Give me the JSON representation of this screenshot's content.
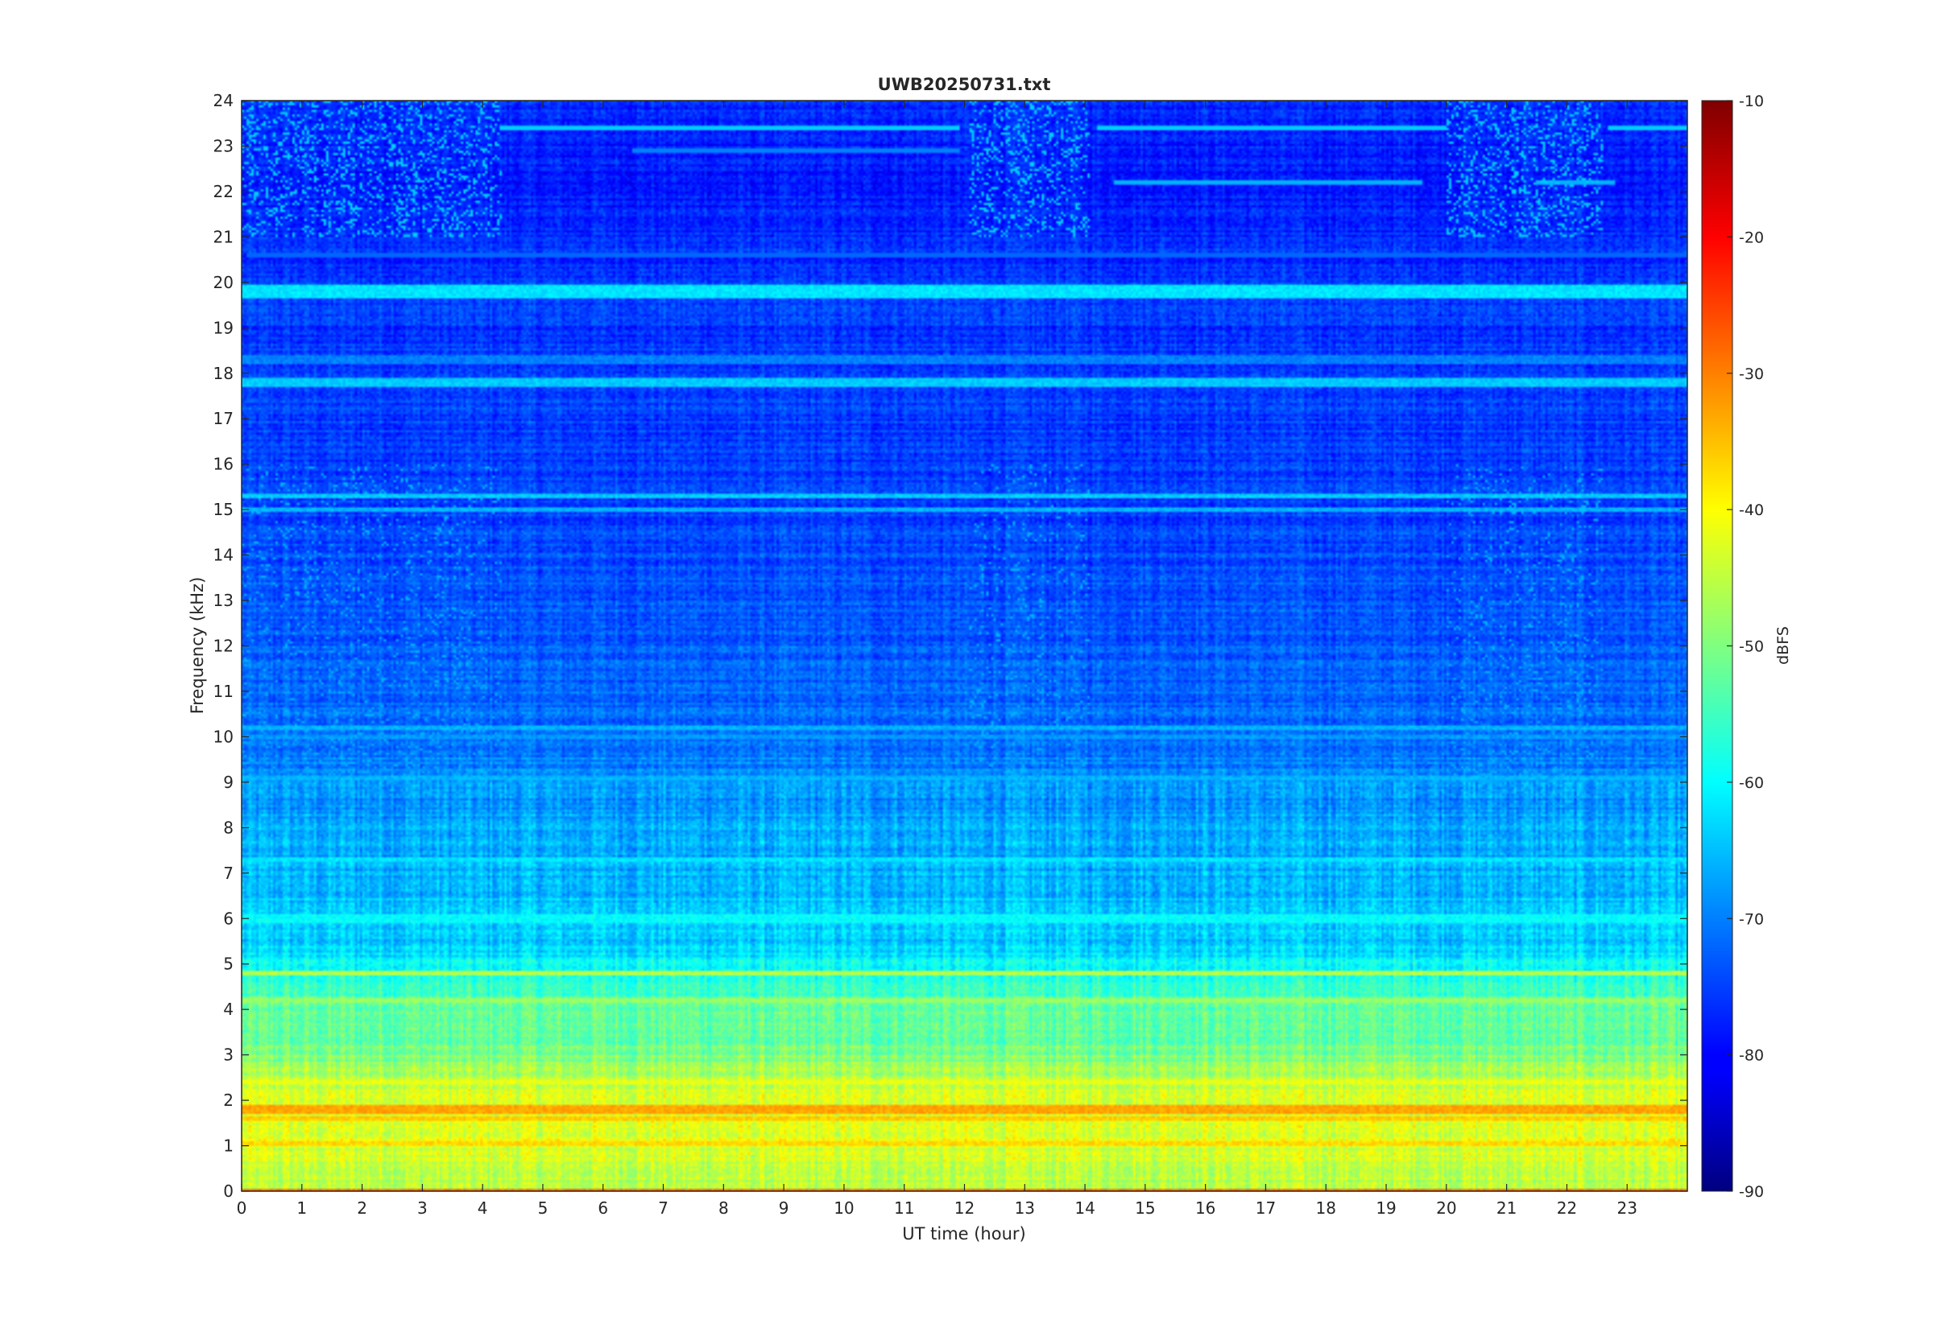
{
  "chart_data": {
    "type": "heatmap",
    "title": "UWB20250731.txt",
    "xlabel": "UT time (hour)",
    "ylabel": "Frequency (kHz)",
    "xlim": [
      0,
      24
    ],
    "ylim": [
      0,
      24
    ],
    "x_ticks": [
      0,
      1,
      2,
      3,
      4,
      5,
      6,
      7,
      8,
      9,
      10,
      11,
      12,
      13,
      14,
      15,
      16,
      17,
      18,
      19,
      20,
      21,
      22,
      23
    ],
    "y_ticks": [
      0,
      1,
      2,
      3,
      4,
      5,
      6,
      7,
      8,
      9,
      10,
      11,
      12,
      13,
      14,
      15,
      16,
      17,
      18,
      19,
      20,
      21,
      22,
      23,
      24
    ],
    "colorbar": {
      "label": "dBFS",
      "colormap": "jet",
      "range": [
        -90,
        -10
      ],
      "ticks": [
        -10,
        -20,
        -30,
        -40,
        -50,
        -60,
        -70,
        -80,
        -90
      ]
    },
    "frequency_profile_dbfs": [
      {
        "f": 0,
        "v": -48
      },
      {
        "f": 0.5,
        "v": -44
      },
      {
        "f": 1,
        "v": -43
      },
      {
        "f": 1.5,
        "v": -41
      },
      {
        "f": 2,
        "v": -42
      },
      {
        "f": 2.5,
        "v": -46
      },
      {
        "f": 3,
        "v": -50
      },
      {
        "f": 3.5,
        "v": -53
      },
      {
        "f": 4,
        "v": -52
      },
      {
        "f": 4.5,
        "v": -56
      },
      {
        "f": 5,
        "v": -60
      },
      {
        "f": 5.5,
        "v": -64
      },
      {
        "f": 6,
        "v": -64
      },
      {
        "f": 7,
        "v": -66
      },
      {
        "f": 8,
        "v": -67
      },
      {
        "f": 9,
        "v": -69
      },
      {
        "f": 10,
        "v": -71
      },
      {
        "f": 12,
        "v": -73
      },
      {
        "f": 14,
        "v": -74
      },
      {
        "f": 16,
        "v": -75
      },
      {
        "f": 18,
        "v": -75
      },
      {
        "f": 20,
        "v": -76
      },
      {
        "f": 21,
        "v": -77
      },
      {
        "f": 22,
        "v": -78
      },
      {
        "f": 23,
        "v": -78
      },
      {
        "f": 24,
        "v": -77
      }
    ],
    "steady_lines_khz": [
      {
        "f": 19.8,
        "v": -62,
        "width": 0.16
      },
      {
        "f": 17.8,
        "v": -64,
        "width": 0.1
      },
      {
        "f": 18.3,
        "v": -70,
        "width": 0.08
      },
      {
        "f": 15.3,
        "v": -64,
        "width": 0.06
      },
      {
        "f": 15.0,
        "v": -66,
        "width": 0.06
      },
      {
        "f": 10.2,
        "v": -66,
        "width": 0.06
      },
      {
        "f": 10.0,
        "v": -68,
        "width": 0.05
      },
      {
        "f": 9.1,
        "v": -66,
        "width": 0.05
      },
      {
        "f": 6.0,
        "v": -60,
        "width": 0.08
      },
      {
        "f": 7.3,
        "v": -62,
        "width": 0.05
      },
      {
        "f": 4.8,
        "v": -46,
        "width": 0.06
      },
      {
        "f": 4.2,
        "v": -48,
        "width": 0.06
      },
      {
        "f": 2.4,
        "v": -42,
        "width": 0.06
      },
      {
        "f": 1.8,
        "v": -33,
        "width": 0.08
      },
      {
        "f": 1.6,
        "v": -36,
        "width": 0.06
      },
      {
        "f": 1.05,
        "v": -37,
        "width": 0.05
      },
      {
        "f": 0.0,
        "v": -28,
        "width": 0.05
      }
    ],
    "time_limited_lines": [
      {
        "f": 23.4,
        "t0": 4.3,
        "t1": 11.9,
        "v": -64
      },
      {
        "f": 23.4,
        "t0": 14.2,
        "t1": 20.0,
        "v": -64
      },
      {
        "f": 23.4,
        "t0": 22.7,
        "t1": 24.0,
        "v": -64
      },
      {
        "f": 22.2,
        "t0": 14.5,
        "t1": 19.6,
        "v": -66
      },
      {
        "f": 22.2,
        "t0": 21.5,
        "t1": 22.8,
        "v": -66
      },
      {
        "f": 22.9,
        "t0": 6.5,
        "t1": 11.9,
        "v": -70
      },
      {
        "f": 20.6,
        "t0": 0.1,
        "t1": 24.0,
        "v": -72
      }
    ],
    "dense_activity_periods_hour": [
      [
        0,
        4.3
      ],
      [
        12.1,
        14.1
      ],
      [
        20.0,
        22.6
      ]
    ]
  }
}
